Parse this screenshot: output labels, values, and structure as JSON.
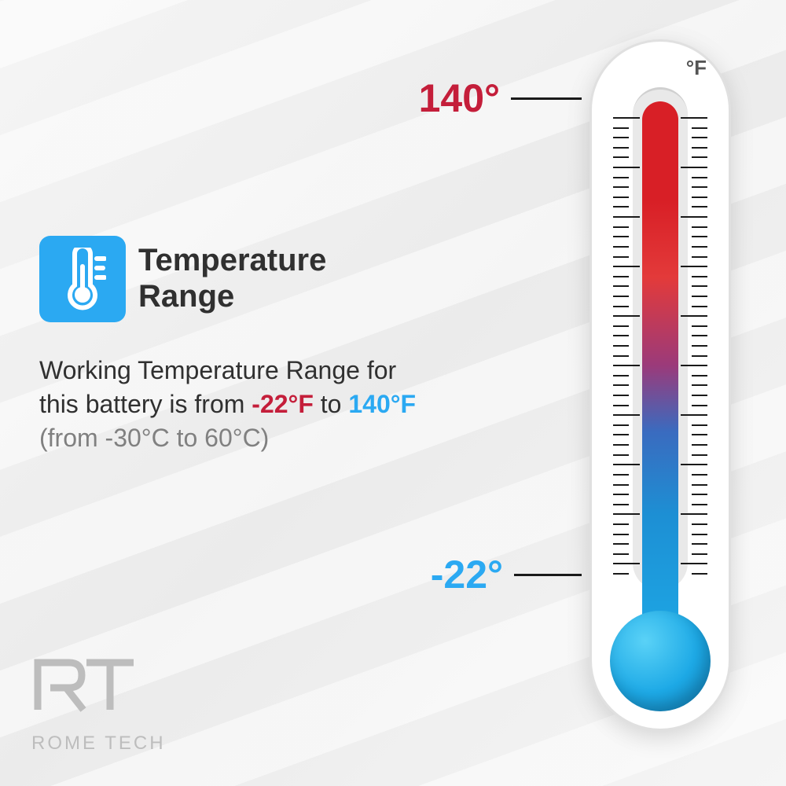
{
  "heading": "Temperature\nRange",
  "description": {
    "prefix": "Working Temperature Range for this battery is from ",
    "low": "-22°F",
    "mid": " to ",
    "high": "140°F",
    "celsius": "(from -30°C to 60°C)"
  },
  "thermometer": {
    "unit": "°F",
    "high_label": "140°",
    "low_label": "-22°",
    "colors": {
      "hot": "#d81f26",
      "cold": "#1da9e6",
      "body": "#ffffff",
      "border": "#e0e0e0"
    },
    "ticks": {
      "count": 46,
      "major_every": 5
    }
  },
  "icon": {
    "bg": "#2ba9f2",
    "name": "thermometer-icon"
  },
  "logo": {
    "mark": "RT",
    "text": "ROME TECH"
  }
}
